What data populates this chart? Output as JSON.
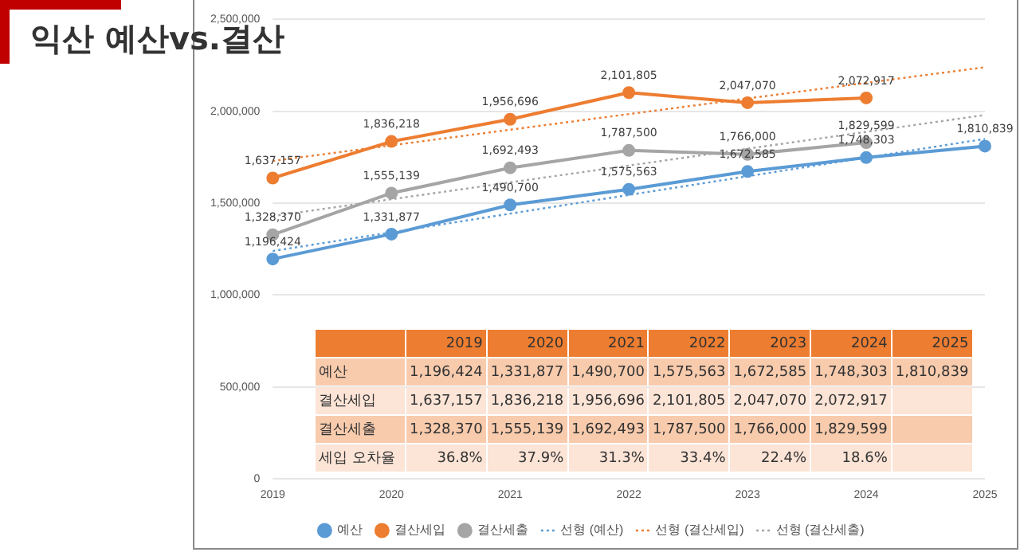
{
  "chart_data": {
    "type": "line",
    "title": "익산 예산vs.결산",
    "categories": [
      "2019",
      "2020",
      "2021",
      "2022",
      "2023",
      "2024",
      "2025"
    ],
    "series": [
      {
        "name": "예산",
        "color": "#5b9bd5",
        "values": [
          1196424,
          1331877,
          1490700,
          1575563,
          1672585,
          1748303,
          1810839
        ],
        "value_labels": [
          "1,196,424",
          "1,331,877",
          "1,490,700",
          "1,575,563",
          "1,672,585",
          "1,748,303",
          "1,810,839"
        ]
      },
      {
        "name": "결산세입",
        "color": "#ed7d31",
        "values": [
          1637157,
          1836218,
          1956696,
          2101805,
          2047070,
          2072917,
          null
        ],
        "value_labels": [
          "1,637,157",
          "1,836,218",
          "1,956,696",
          "2,101,805",
          "2,047,070",
          "2,072,917",
          null
        ]
      },
      {
        "name": "결산세출",
        "color": "#a5a5a5",
        "values": [
          1328370,
          1555139,
          1692493,
          1787500,
          1766000,
          1829599,
          null
        ],
        "value_labels": [
          "1,328,370",
          "1,555,139",
          "1,692,493",
          "1,787,500",
          "1,766,000",
          "1,829,599",
          null
        ]
      },
      {
        "name": "선형 (예산)",
        "color": "#5b9bd5",
        "values": [
          1240000,
          null,
          null,
          null,
          null,
          null,
          1850000
        ],
        "line_style": "dotted",
        "marker": "none"
      },
      {
        "name": "선형 (결산세입)",
        "color": "#ed7d31",
        "values": [
          1730000,
          null,
          null,
          null,
          null,
          null,
          2240000
        ],
        "line_style": "dotted",
        "marker": "none"
      },
      {
        "name": "선형 (결산세출)",
        "color": "#a5a5a5",
        "values": [
          1430000,
          null,
          null,
          null,
          null,
          null,
          1980000
        ],
        "line_style": "dotted",
        "marker": "none"
      }
    ],
    "ylim": [
      0,
      2500000
    ],
    "yticks": [
      0,
      {
        "value": 500000,
        "label": "500,000"
      },
      {
        "value": 1000000,
        "label": "1,000,000"
      },
      {
        "value": 1500000,
        "label": "1,500,000"
      },
      {
        "value": 2000000,
        "label": "2,000,000"
      },
      {
        "value": 2500000,
        "label": "2,500,000"
      }
    ],
    "grid": "y",
    "legend": "bottom",
    "marker": "circle",
    "line_style": "solid",
    "annotations": [
      "세입 오차율",
      "36.8%",
      "37.9%",
      "31.3%",
      "33.4%",
      "22.4%",
      "18.6%"
    ]
  }
}
